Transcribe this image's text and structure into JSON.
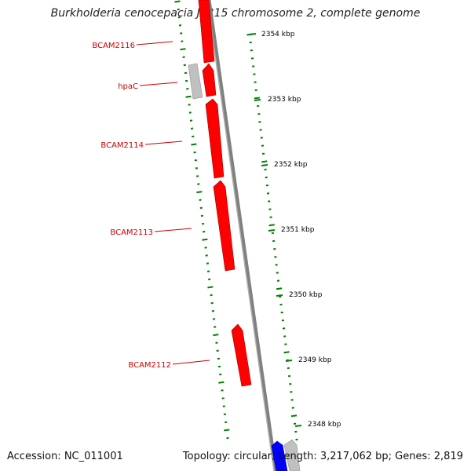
{
  "title": "Burkholderia cenocepacia J2315 chromosome 2, complete genome",
  "footer": {
    "accession": "Accession: NC_011001",
    "summary": "Topology: circular; Length: 3,217,062 bp; Genes: 2,819"
  },
  "colors": {
    "forward_gene": "#ff0000",
    "reverse_gene": "#0000ff",
    "other_feature": "#c0c0c0",
    "backbone": "#808080",
    "gc_skew_ticks": "#008000",
    "gene_label": "#cc0000",
    "kbp_label": "#000000"
  },
  "scale_labels": [
    {
      "value": 2354,
      "text": "2354 kbp"
    },
    {
      "value": 2353,
      "text": "2353 kbp"
    },
    {
      "value": 2352,
      "text": "2352 kbp"
    },
    {
      "value": 2351,
      "text": "2351 kbp"
    },
    {
      "value": 2350,
      "text": "2350 kbp"
    },
    {
      "value": 2349,
      "text": "2349 kbp"
    },
    {
      "value": 2348,
      "text": "2348 kbp"
    }
  ],
  "genes": [
    {
      "label": "BCAM2116",
      "strand": "+",
      "color": "red",
      "start": 2354.45,
      "end": 2353.8
    },
    {
      "label": "hpaC",
      "strand": "+",
      "color": "red",
      "start": 2353.7,
      "end": 2353.25
    },
    {
      "label": "",
      "strand": "",
      "color": "gray",
      "start": 2353.7,
      "end": 2353.25
    },
    {
      "label": "BCAM2114",
      "strand": "+",
      "color": "red",
      "start": 2353.2,
      "end": 2352.05
    },
    {
      "label": "BCAM2113",
      "strand": "+",
      "color": "red",
      "start": 2351.95,
      "end": 2350.6
    },
    {
      "label": "BCAM2112",
      "strand": "+",
      "color": "red",
      "start": 2349.65,
      "end": 2348.7
    },
    {
      "label": "",
      "strand": "-",
      "color": "blue",
      "start": 2347.85,
      "end": 2347.4
    },
    {
      "label": "",
      "strand": "",
      "color": "gray",
      "start": 2347.85,
      "end": 2347.4
    }
  ]
}
